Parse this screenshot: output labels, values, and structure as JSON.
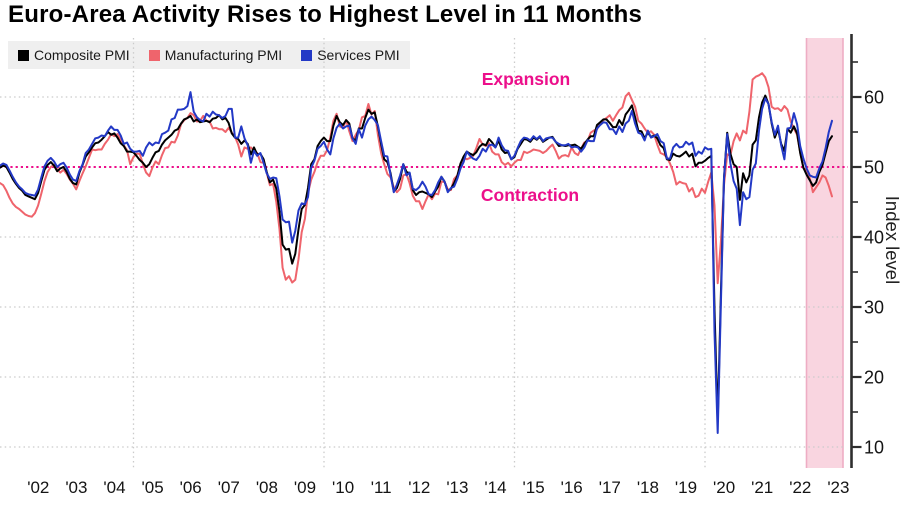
{
  "title": "Euro-Area Activity Rises to Highest Level in 11 Months",
  "legend": {
    "items": [
      {
        "label": "Composite PMI",
        "color": "#000000"
      },
      {
        "label": "Manufacturing PMI",
        "color": "#ef646c"
      },
      {
        "label": "Services PMI",
        "color": "#2339c6"
      }
    ]
  },
  "annotations": {
    "expansion": "Expansion",
    "contraction": "Contraction",
    "color": "#ec0f8b"
  },
  "axis": {
    "ylabel": "Index level",
    "y_ticks": [
      "60",
      "50",
      "40",
      "30",
      "20",
      "10"
    ],
    "x_labels": [
      "'02",
      "'03",
      "'04",
      "'05",
      "'06",
      "'07",
      "'08",
      "'09",
      "'10",
      "'11",
      "'12",
      "'13",
      "'14",
      "'15",
      "'16",
      "'17",
      "'18",
      "'19",
      "'20",
      "'21",
      "'22",
      "'23"
    ]
  },
  "chart_data": {
    "type": "line",
    "frequency": "monthly",
    "x_start": "2001-06",
    "x_end": "2023-04",
    "ylim": [
      7,
      68
    ],
    "threshold": 50,
    "grid_values": [
      60,
      40,
      30,
      20,
      10
    ],
    "highlight_band": {
      "from": "2022-07",
      "to": "2023-06",
      "fill": "#f9d5e0",
      "edge": "#eeadc4"
    },
    "series": [
      {
        "id": "composite",
        "name": "Composite PMI",
        "color": "#000000",
        "values": [
          49.9,
          50.2,
          50.0,
          49.2,
          48.3,
          47.6,
          47.0,
          46.6,
          46.0,
          45.8,
          45.6,
          45.4,
          46.3,
          48.0,
          49.6,
          50.3,
          50.7,
          50.2,
          49.4,
          49.8,
          50.0,
          49.3,
          48.3,
          47.7,
          47.5,
          49.2,
          50.3,
          51.5,
          52.1,
          52.8,
          53.4,
          53.5,
          53.9,
          54.4,
          55.0,
          54.6,
          54.8,
          54.2,
          53.4,
          53.0,
          52.2,
          52.2,
          52.1,
          51.6,
          51.0,
          50.6,
          50.0,
          50.4,
          51.3,
          52.1,
          52.3,
          53.2,
          53.8,
          54.2,
          54.6,
          55.2,
          55.4,
          56.2,
          56.8,
          57.0,
          57.3,
          56.5,
          56.8,
          56.4,
          56.5,
          56.6,
          56.4,
          56.9,
          57.0,
          57.4,
          56.8,
          57.0,
          56.3,
          54.8,
          54.2,
          54.0,
          53.3,
          53.8,
          53.3,
          51.8,
          52.8,
          51.8,
          51.9,
          51.1,
          49.3,
          47.8,
          48.2,
          46.9,
          43.6,
          38.9,
          38.2,
          38.3,
          36.2,
          37.6,
          41.1,
          44.0,
          44.6,
          47.0,
          50.4,
          51.1,
          53.0,
          53.7,
          54.2,
          53.7,
          53.7,
          55.9,
          57.3,
          56.4,
          56.0,
          56.7,
          56.2,
          54.1,
          53.8,
          55.5,
          55.5,
          57.0,
          58.2,
          57.6,
          57.8,
          55.8,
          53.3,
          51.1,
          50.7,
          49.1,
          46.5,
          47.0,
          48.3,
          50.4,
          49.3,
          49.1,
          46.7,
          46.0,
          46.4,
          46.5,
          46.3,
          46.1,
          45.7,
          46.5,
          47.2,
          48.6,
          47.9,
          46.5,
          46.9,
          47.7,
          48.7,
          50.5,
          51.5,
          52.2,
          51.9,
          51.7,
          52.1,
          52.9,
          53.3,
          53.1,
          54.0,
          53.5,
          52.8,
          53.8,
          52.5,
          52.0,
          52.1,
          51.1,
          51.4,
          52.6,
          53.3,
          54.0,
          53.9,
          53.6,
          54.2,
          53.9,
          54.3,
          53.6,
          53.9,
          54.2,
          54.3,
          53.6,
          53.0,
          53.1,
          53.0,
          53.1,
          53.1,
          53.2,
          52.9,
          52.6,
          53.3,
          53.9,
          54.4,
          54.4,
          56.0,
          56.4,
          56.8,
          56.8,
          56.3,
          55.7,
          55.7,
          56.7,
          56.0,
          57.5,
          58.1,
          58.8,
          57.1,
          55.2,
          55.1,
          54.1,
          54.9,
          54.3,
          54.5,
          54.1,
          53.1,
          52.7,
          51.1,
          51.0,
          51.9,
          51.6,
          51.5,
          51.8,
          52.2,
          51.5,
          51.9,
          50.1,
          50.6,
          50.6,
          50.9,
          51.3,
          51.6,
          29.7,
          13.6,
          31.9,
          48.5,
          54.9,
          51.9,
          50.4,
          50.0,
          45.3,
          49.1,
          47.8,
          48.8,
          53.2,
          53.8,
          57.1,
          59.2,
          60.2,
          59.0,
          56.2,
          54.2,
          55.4,
          53.3,
          52.3,
          55.5,
          54.9,
          55.8,
          54.8,
          52.0,
          49.9,
          48.9,
          48.1,
          47.3,
          47.8,
          49.3,
          50.3,
          52.0,
          53.7,
          54.4
        ]
      },
      {
        "id": "manufacturing",
        "name": "Manufacturing PMI",
        "color": "#ef646c",
        "values": [
          47.7,
          47.4,
          46.6,
          45.6,
          44.8,
          44.3,
          44.0,
          43.6,
          43.2,
          43.0,
          42.9,
          43.4,
          44.5,
          46.2,
          48.0,
          49.3,
          50.0,
          50.3,
          49.7,
          49.2,
          49.6,
          49.0,
          48.2,
          47.6,
          46.8,
          48.0,
          49.1,
          50.1,
          51.3,
          52.5,
          52.4,
          52.5,
          52.5,
          53.3,
          53.9,
          54.7,
          54.4,
          54.7,
          53.9,
          53.1,
          52.4,
          50.4,
          51.4,
          51.9,
          51.9,
          50.4,
          49.2,
          48.7,
          49.9,
          50.8,
          50.4,
          51.7,
          52.7,
          52.8,
          53.6,
          53.5,
          54.5,
          56.1,
          56.7,
          57.0,
          57.7,
          57.4,
          56.5,
          56.6,
          57.3,
          56.6,
          56.5,
          55.5,
          55.6,
          55.4,
          55.4,
          55.0,
          55.6,
          54.9,
          54.3,
          53.2,
          51.5,
          52.8,
          52.6,
          52.8,
          52.3,
          52.0,
          50.7,
          50.6,
          49.2,
          47.4,
          47.6,
          45.0,
          41.1,
          35.6,
          33.9,
          34.4,
          33.5,
          33.9,
          36.8,
          40.7,
          42.6,
          46.3,
          48.2,
          49.3,
          50.7,
          51.6,
          51.6,
          52.4,
          54.2,
          56.6,
          57.6,
          55.8,
          55.6,
          56.7,
          55.1,
          53.7,
          54.6,
          55.3,
          57.1,
          57.3,
          59.0,
          57.5,
          58.0,
          54.6,
          52.0,
          50.4,
          49.0,
          48.5,
          47.1,
          46.4,
          46.9,
          48.8,
          49.0,
          47.7,
          45.9,
          45.1,
          45.1,
          44.0,
          45.1,
          46.1,
          45.4,
          46.2,
          46.1,
          47.9,
          47.9,
          46.8,
          46.7,
          48.3,
          48.8,
          50.3,
          51.4,
          51.1,
          51.3,
          51.6,
          52.7,
          54.0,
          53.2,
          53.0,
          53.4,
          52.2,
          51.8,
          51.8,
          50.7,
          50.3,
          50.6,
          50.1,
          50.6,
          51.0,
          51.0,
          52.2,
          52.0,
          52.2,
          52.5,
          52.4,
          52.3,
          52.0,
          52.3,
          52.8,
          53.2,
          52.3,
          51.2,
          51.6,
          51.7,
          51.5,
          52.8,
          52.0,
          51.7,
          52.6,
          53.5,
          53.7,
          54.9,
          55.2,
          55.4,
          56.2,
          56.7,
          57.0,
          57.4,
          56.6,
          57.4,
          58.1,
          58.5,
          60.1,
          60.6,
          59.6,
          58.6,
          56.6,
          56.2,
          55.5,
          54.9,
          55.1,
          54.6,
          53.2,
          52.0,
          51.8,
          51.4,
          50.5,
          49.3,
          47.5,
          47.9,
          47.7,
          47.6,
          46.5,
          47.0,
          45.7,
          45.9,
          46.9,
          46.3,
          47.9,
          49.2,
          44.5,
          33.4,
          39.4,
          47.4,
          51.8,
          51.7,
          53.7,
          54.8,
          53.8,
          55.2,
          54.8,
          57.9,
          62.5,
          62.9,
          63.1,
          63.4,
          62.8,
          61.4,
          58.6,
          58.3,
          58.4,
          58.0,
          58.7,
          58.2,
          56.5,
          55.5,
          54.6,
          52.1,
          49.8,
          49.6,
          48.4,
          46.4,
          47.1,
          47.8,
          48.8,
          48.5,
          47.3,
          45.8
        ]
      },
      {
        "id": "services",
        "name": "Services PMI",
        "color": "#2339c6",
        "values": [
          50.2,
          50.5,
          50.3,
          49.5,
          48.6,
          47.8,
          47.2,
          46.8,
          46.3,
          46.1,
          46.0,
          45.9,
          46.8,
          48.5,
          50.1,
          50.9,
          51.3,
          50.8,
          50.0,
          50.4,
          50.6,
          49.9,
          48.9,
          48.2,
          48.0,
          49.4,
          50.4,
          52.0,
          52.5,
          53.3,
          54.1,
          54.2,
          54.5,
          54.4,
          55.2,
          55.8,
          55.3,
          55.3,
          54.5,
          53.3,
          53.5,
          52.6,
          52.2,
          52.2,
          52.3,
          51.6,
          52.8,
          53.5,
          53.1,
          53.5,
          53.4,
          54.7,
          54.9,
          55.2,
          56.8,
          57.0,
          58.2,
          58.2,
          58.3,
          58.7,
          60.7,
          57.9,
          57.1,
          56.7,
          56.5,
          57.6,
          57.2,
          57.9,
          57.5,
          57.4,
          57.0,
          57.3,
          58.3,
          58.3,
          54.2,
          54.2,
          55.8,
          54.1,
          53.1,
          50.6,
          52.3,
          51.6,
          52.0,
          50.6,
          49.1,
          48.3,
          48.5,
          48.4,
          45.8,
          42.5,
          42.1,
          42.2,
          39.2,
          40.9,
          43.8,
          44.8,
          44.7,
          45.7,
          49.9,
          50.9,
          52.6,
          53.0,
          53.6,
          52.5,
          51.8,
          54.1,
          55.6,
          56.2,
          55.5,
          55.8,
          55.9,
          54.1,
          53.3,
          55.4,
          54.2,
          55.9,
          56.8,
          57.2,
          56.7,
          56.0,
          53.7,
          51.6,
          51.5,
          48.8,
          46.4,
          47.5,
          48.8,
          50.4,
          48.8,
          49.2,
          46.9,
          46.7,
          47.1,
          47.9,
          47.2,
          46.1,
          46.0,
          46.7,
          47.8,
          48.6,
          47.9,
          46.4,
          47.0,
          47.2,
          48.3,
          49.8,
          50.7,
          52.2,
          51.6,
          51.2,
          51.0,
          51.6,
          52.6,
          52.2,
          53.1,
          53.2,
          52.8,
          54.2,
          53.1,
          52.4,
          52.3,
          51.1,
          51.6,
          52.7,
          53.7,
          54.2,
          54.1,
          53.8,
          54.4,
          54.0,
          54.4,
          53.7,
          54.1,
          54.2,
          54.2,
          53.6,
          53.3,
          53.1,
          53.1,
          53.3,
          52.8,
          52.9,
          52.8,
          52.2,
          52.8,
          53.8,
          53.7,
          53.7,
          55.5,
          56.0,
          56.4,
          56.3,
          55.4,
          55.4,
          54.7,
          55.8,
          55.0,
          56.2,
          56.6,
          58.0,
          56.2,
          54.9,
          54.7,
          53.8,
          55.2,
          54.2,
          54.4,
          54.7,
          53.7,
          53.4,
          51.2,
          51.2,
          52.8,
          53.3,
          52.8,
          52.9,
          53.6,
          53.2,
          53.5,
          51.6,
          52.2,
          51.9,
          52.8,
          52.5,
          52.6,
          26.4,
          12.0,
          30.5,
          48.3,
          54.7,
          50.5,
          48.0,
          46.9,
          41.7,
          46.4,
          45.4,
          45.7,
          49.6,
          50.5,
          55.2,
          58.3,
          59.8,
          59.0,
          56.4,
          54.6,
          55.9,
          53.1,
          51.1,
          55.5,
          55.6,
          57.7,
          56.1,
          53.0,
          51.2,
          49.8,
          48.8,
          48.6,
          48.5,
          49.8,
          50.8,
          52.7,
          55.0,
          56.6
        ]
      }
    ]
  }
}
